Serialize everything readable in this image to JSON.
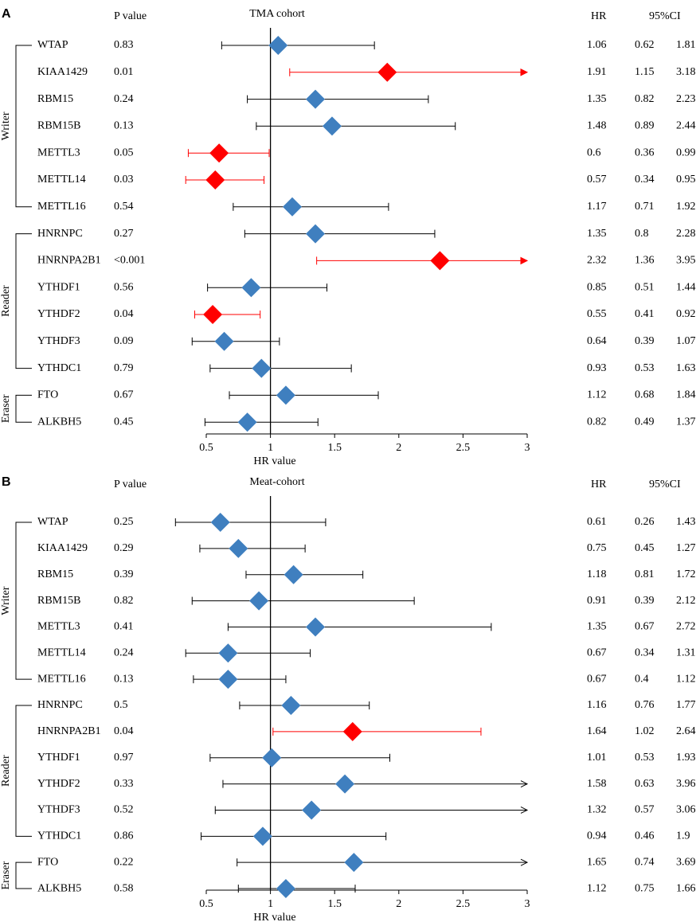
{
  "chart_data": [
    {
      "type": "forest",
      "panel": "A",
      "title": "TMA cohort",
      "p_header": "P value",
      "hr_header": "HR",
      "ci_header": "95%CI",
      "xlabel": "HR value",
      "xlim": [
        0.5,
        3
      ],
      "xticks": [
        0.5,
        1,
        1.5,
        2,
        2.5,
        3
      ],
      "ref_line": 1,
      "groups": [
        {
          "name": "Writer",
          "rows": [
            {
              "name": "WTAP",
              "p": "0.83",
              "hr": 1.06,
              "lower": 0.62,
              "upper": 1.81,
              "color": "#3f7fbf"
            },
            {
              "name": "KIAA1429",
              "p": "0.01",
              "hr": 1.91,
              "lower": 1.15,
              "upper": 3.18,
              "color": "#ff0000"
            },
            {
              "name": "RBM15",
              "p": "0.24",
              "hr": 1.35,
              "lower": 0.82,
              "upper": 2.23,
              "color": "#3f7fbf"
            },
            {
              "name": "RBM15B",
              "p": "0.13",
              "hr": 1.48,
              "lower": 0.89,
              "upper": 2.44,
              "color": "#3f7fbf"
            },
            {
              "name": "METTL3",
              "p": "0.05",
              "hr": 0.6,
              "lower": 0.36,
              "upper": 0.99,
              "color": "#ff0000"
            },
            {
              "name": "METTL14",
              "p": "0.03",
              "hr": 0.57,
              "lower": 0.34,
              "upper": 0.95,
              "color": "#ff0000"
            },
            {
              "name": "METTL16",
              "p": "0.54",
              "hr": 1.17,
              "lower": 0.71,
              "upper": 1.92,
              "color": "#3f7fbf"
            }
          ]
        },
        {
          "name": "Reader",
          "rows": [
            {
              "name": "HNRNPC",
              "p": "0.27",
              "hr": 1.35,
              "lower": 0.8,
              "upper": 2.28,
              "color": "#3f7fbf"
            },
            {
              "name": "HNRNPA2B1",
              "p": "<0.001",
              "hr": 2.32,
              "lower": 1.36,
              "upper": 3.95,
              "color": "#ff0000"
            },
            {
              "name": "YTHDF1",
              "p": "0.56",
              "hr": 0.85,
              "lower": 0.51,
              "upper": 1.44,
              "color": "#3f7fbf"
            },
            {
              "name": "YTHDF2",
              "p": "0.04",
              "hr": 0.55,
              "lower": 0.41,
              "upper": 0.92,
              "color": "#ff0000"
            },
            {
              "name": "YTHDF3",
              "p": "0.09",
              "hr": 0.64,
              "lower": 0.39,
              "upper": 1.07,
              "color": "#3f7fbf"
            },
            {
              "name": "YTHDC1",
              "p": "0.79",
              "hr": 0.93,
              "lower": 0.53,
              "upper": 1.63,
              "color": "#3f7fbf"
            }
          ]
        },
        {
          "name": "Eraser",
          "rows": [
            {
              "name": "FTO",
              "p": "0.67",
              "hr": 1.12,
              "lower": 0.68,
              "upper": 1.84,
              "color": "#3f7fbf"
            },
            {
              "name": "ALKBH5",
              "p": "0.45",
              "hr": 0.82,
              "lower": 0.49,
              "upper": 1.37,
              "color": "#3f7fbf"
            }
          ]
        }
      ]
    },
    {
      "type": "forest",
      "panel": "B",
      "title": "Meat-cohort",
      "p_header": "P value",
      "hr_header": "HR",
      "ci_header": "95%CI",
      "xlabel": "HR value",
      "xlim": [
        0.5,
        3
      ],
      "xticks": [
        0.5,
        1,
        1.5,
        2,
        2.5,
        3
      ],
      "ref_line": 1,
      "groups": [
        {
          "name": "Writer",
          "rows": [
            {
              "name": "WTAP",
              "p": "0.25",
              "hr": 0.61,
              "lower": 0.26,
              "upper": 1.43,
              "color": "#3f7fbf"
            },
            {
              "name": "KIAA1429",
              "p": "0.29",
              "hr": 0.75,
              "lower": 0.45,
              "upper": 1.27,
              "color": "#3f7fbf"
            },
            {
              "name": "RBM15",
              "p": "0.39",
              "hr": 1.18,
              "lower": 0.81,
              "upper": 1.72,
              "color": "#3f7fbf"
            },
            {
              "name": "RBM15B",
              "p": "0.82",
              "hr": 0.91,
              "lower": 0.39,
              "upper": 2.12,
              "color": "#3f7fbf"
            },
            {
              "name": "METTL3",
              "p": "0.41",
              "hr": 1.35,
              "lower": 0.67,
              "upper": 2.72,
              "color": "#3f7fbf"
            },
            {
              "name": "METTL14",
              "p": "0.24",
              "hr": 0.67,
              "lower": 0.34,
              "upper": 1.31,
              "color": "#3f7fbf"
            },
            {
              "name": "METTL16",
              "p": "0.13",
              "hr": 0.67,
              "lower": 0.4,
              "upper": 1.12,
              "color": "#3f7fbf"
            }
          ]
        },
        {
          "name": "Reader",
          "rows": [
            {
              "name": "HNRNPC",
              "p": "0.5",
              "hr": 1.16,
              "lower": 0.76,
              "upper": 1.77,
              "color": "#3f7fbf"
            },
            {
              "name": "HNRNPA2B1",
              "p": "0.04",
              "hr": 1.64,
              "lower": 1.02,
              "upper": 2.64,
              "color": "#ff0000"
            },
            {
              "name": "YTHDF1",
              "p": "0.97",
              "hr": 1.01,
              "lower": 0.53,
              "upper": 1.93,
              "color": "#3f7fbf"
            },
            {
              "name": "YTHDF2",
              "p": "0.33",
              "hr": 1.58,
              "lower": 0.63,
              "upper": 3.96,
              "color": "#3f7fbf"
            },
            {
              "name": "YTHDF3",
              "p": "0.52",
              "hr": 1.32,
              "lower": 0.57,
              "upper": 3.06,
              "color": "#3f7fbf"
            },
            {
              "name": "YTHDC1",
              "p": "0.86",
              "hr": 0.94,
              "lower": 0.46,
              "upper": 1.9,
              "color": "#3f7fbf"
            }
          ]
        },
        {
          "name": "Eraser",
          "rows": [
            {
              "name": "FTO",
              "p": "0.22",
              "hr": 1.65,
              "lower": 0.74,
              "upper": 3.69,
              "color": "#3f7fbf"
            },
            {
              "name": "ALKBH5",
              "p": "0.58",
              "hr": 1.12,
              "lower": 0.75,
              "upper": 1.66,
              "color": "#3f7fbf"
            }
          ]
        }
      ]
    }
  ]
}
